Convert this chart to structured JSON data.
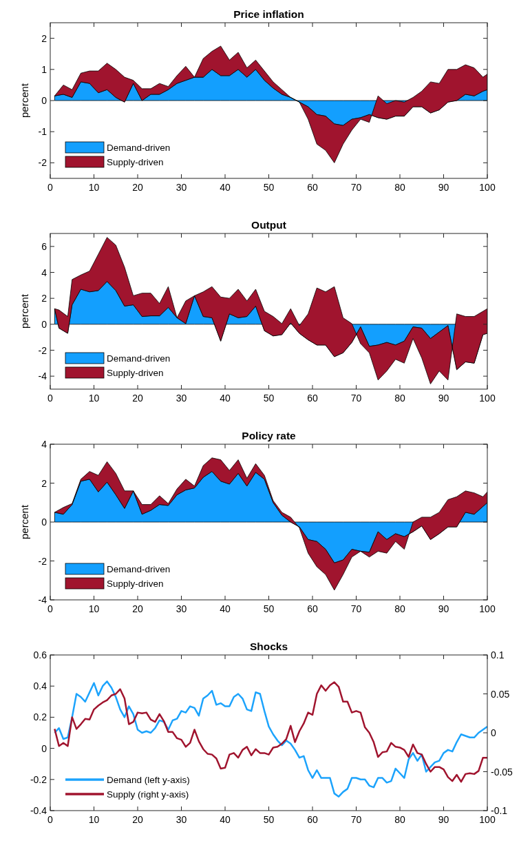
{
  "chart_data": [
    {
      "type": "area",
      "title": "Price inflation",
      "ylabel": "percent",
      "stacked": true,
      "legend": "bottom left",
      "xlim": [
        0,
        100
      ],
      "xticks": [
        0,
        10,
        20,
        30,
        40,
        50,
        60,
        70,
        80,
        90,
        100
      ],
      "ylim": [
        -2.5,
        2.5
      ],
      "yticks": [
        -2,
        -1,
        0,
        1,
        2
      ],
      "x": [
        1,
        3,
        5,
        7,
        9,
        11,
        13,
        15,
        17,
        19,
        21,
        23,
        25,
        27,
        29,
        31,
        33,
        35,
        37,
        39,
        41,
        43,
        45,
        47,
        49,
        51,
        53,
        55,
        57,
        59,
        61,
        63,
        65,
        67,
        69,
        71,
        73,
        75,
        77,
        79,
        81,
        83,
        85,
        87,
        89,
        91,
        93,
        95,
        97,
        99,
        100
      ],
      "series": [
        {
          "name": "Demand-driven",
          "color": "#139ffe",
          "values": [
            0.15,
            0.2,
            0.1,
            0.6,
            0.55,
            0.25,
            0.35,
            0.1,
            -0.05,
            0.55,
            0,
            0.2,
            0.2,
            0.35,
            0.55,
            0.65,
            0.75,
            0.75,
            1.0,
            0.8,
            0.8,
            1.0,
            0.75,
            1.0,
            0.65,
            0.4,
            0.2,
            0.1,
            -0.05,
            -0.2,
            -0.45,
            -0.5,
            -0.75,
            -0.8,
            -0.6,
            -0.55,
            -0.45,
            -0.55,
            -0.6,
            -0.5,
            -0.5,
            -0.2,
            -0.2,
            -0.4,
            -0.3,
            -0.05,
            0,
            0.2,
            0.15,
            0.3,
            0.35
          ]
        },
        {
          "name": "Supply-driven",
          "color": "#a0142e",
          "values": [
            0,
            0.3,
            0.25,
            0.28,
            0.4,
            0.7,
            0.85,
            0.9,
            0.8,
            0.1,
            0.38,
            0.18,
            0.35,
            0.1,
            0.25,
            0.45,
            0,
            0.6,
            0.58,
            0.95,
            0.5,
            0.55,
            0.3,
            0.3,
            0.3,
            0.2,
            0.15,
            0,
            0,
            -0.4,
            -0.95,
            -1.1,
            -1.25,
            -0.6,
            -0.35,
            -0.05,
            -0.25,
            0.7,
            0.5,
            0.5,
            0.45,
            0.3,
            0.5,
            1.0,
            0.85,
            1.05,
            1.0,
            0.95,
            0.9,
            0.45,
            0.5
          ]
        }
      ]
    },
    {
      "type": "area",
      "title": "Output",
      "ylabel": "percent",
      "stacked": true,
      "legend": "bottom left",
      "xlim": [
        0,
        100
      ],
      "xticks": [
        0,
        10,
        20,
        30,
        40,
        50,
        60,
        70,
        80,
        90,
        100
      ],
      "ylim": [
        -5,
        7
      ],
      "yticks": [
        -4,
        -2,
        0,
        2,
        4,
        6
      ],
      "x": [
        1,
        2,
        4,
        5,
        7,
        9,
        11,
        13,
        15,
        17,
        19,
        21,
        23,
        25,
        27,
        29,
        31,
        33,
        35,
        37,
        39,
        41,
        43,
        45,
        47,
        49,
        51,
        53,
        55,
        57,
        59,
        61,
        63,
        65,
        67,
        69,
        71,
        73,
        75,
        77,
        79,
        81,
        83,
        85,
        87,
        89,
        91,
        93,
        95,
        97,
        99,
        100
      ],
      "series": [
        {
          "name": "Demand-driven",
          "color": "#139ffe",
          "values": [
            1.2,
            -0.3,
            -0.7,
            1.5,
            2.7,
            2.5,
            2.6,
            3.3,
            2.6,
            1.4,
            1.5,
            0.6,
            0.65,
            0.65,
            1.3,
            0.5,
            0.05,
            2.2,
            0.6,
            0.5,
            -1.3,
            0.8,
            0.5,
            0.6,
            1.4,
            -0.5,
            -0.9,
            -0.8,
            0.1,
            -0.7,
            -1.2,
            -1.6,
            -1.6,
            -2.5,
            -2.2,
            -1.4,
            -0.2,
            -1.7,
            -1.6,
            -1.4,
            -1.6,
            -1.3,
            -0.2,
            -0.3,
            -1.1,
            -0.6,
            -0.1,
            -3.5,
            -2.9,
            -3.0,
            -0.8,
            -0.7
          ]
        },
        {
          "name": "Supply-driven",
          "color": "#a0142e",
          "values": [
            0,
            1.4,
            1.3,
            1.95,
            1.1,
            1.6,
            2.8,
            3.4,
            3.5,
            3.0,
            0.7,
            1.8,
            1.75,
            0.95,
            1.6,
            0,
            1.75,
            0,
            1.9,
            2.4,
            3.4,
            1.2,
            2.2,
            1.2,
            1.3,
            1.5,
            1.5,
            0.85,
            1.1,
            0.6,
            2.0,
            4.4,
            4.1,
            5.4,
            2.7,
            1.45,
            -1.3,
            -0.5,
            -2.7,
            -2.2,
            -1.1,
            -1.7,
            -0.9,
            -2.3,
            -3.5,
            -3.0,
            -4.2,
            4.3,
            3.5,
            3.6,
            1.8,
            1.9
          ]
        }
      ]
    },
    {
      "type": "area",
      "title": "Policy rate",
      "ylabel": "percent",
      "stacked": true,
      "legend": "bottom left",
      "xlim": [
        0,
        100
      ],
      "xticks": [
        0,
        10,
        20,
        30,
        40,
        50,
        60,
        70,
        80,
        90,
        100
      ],
      "ylim": [
        -4,
        4
      ],
      "yticks": [
        -4,
        -2,
        0,
        2,
        4
      ],
      "x": [
        1,
        3,
        5,
        7,
        9,
        11,
        13,
        15,
        17,
        19,
        21,
        23,
        25,
        27,
        29,
        31,
        33,
        35,
        37,
        39,
        41,
        43,
        45,
        47,
        49,
        51,
        53,
        55,
        57,
        59,
        61,
        63,
        65,
        67,
        69,
        71,
        73,
        75,
        77,
        79,
        81,
        83,
        85,
        87,
        89,
        91,
        93,
        95,
        97,
        99,
        100
      ],
      "series": [
        {
          "name": "Demand-driven",
          "color": "#139ffe",
          "values": [
            0.5,
            0.4,
            0.9,
            2.1,
            2.2,
            1.55,
            2.05,
            1.4,
            0.7,
            1.6,
            0.4,
            0.6,
            0.9,
            0.85,
            1.4,
            1.65,
            1.75,
            2.3,
            2.6,
            2.1,
            1.95,
            2.5,
            1.85,
            2.55,
            2.2,
            1.0,
            0.35,
            0,
            -0.25,
            -0.9,
            -1.0,
            -1.4,
            -2.1,
            -1.95,
            -1.4,
            -1.5,
            -1.55,
            -0.5,
            -0.9,
            -0.6,
            -0.75,
            -0.5,
            -0.2,
            -0.9,
            -0.6,
            -0.25,
            -0.25,
            0.5,
            0.4,
            0.8,
            1.0
          ]
        },
        {
          "name": "Supply-driven",
          "color": "#a0142e",
          "values": [
            0,
            0.35,
            0.05,
            0.1,
            0.4,
            0.85,
            1.05,
            1.1,
            0.9,
            0,
            0.5,
            0.3,
            0.45,
            0.1,
            0.3,
            0.55,
            0.1,
            0.6,
            0.7,
            1.1,
            0.7,
            0.7,
            0.4,
            0.45,
            0.2,
            0.1,
            0.15,
            0.25,
            -0.05,
            -0.7,
            -1.3,
            -1.3,
            -1.4,
            -0.75,
            -0.4,
            0,
            -0.25,
            -1.0,
            -0.7,
            -0.4,
            -0.65,
            0.5,
            0.45,
            1.15,
            1.1,
            1.4,
            1.55,
            1.1,
            1.1,
            0.5,
            0.55
          ]
        }
      ]
    },
    {
      "type": "line",
      "title": "Shocks",
      "legend": "bottom left",
      "xlim": [
        0,
        100
      ],
      "xticks": [
        0,
        10,
        20,
        30,
        40,
        50,
        60,
        70,
        80,
        90,
        100
      ],
      "ylim": [
        -0.4,
        0.6
      ],
      "yticks": [
        -0.4,
        -0.2,
        0,
        0.2,
        0.4,
        0.6
      ],
      "y2lim": [
        -0.1,
        0.1
      ],
      "y2ticks": [
        -0.1,
        -0.05,
        0,
        0.05,
        0.1
      ],
      "x": [
        1,
        2,
        3,
        4,
        5,
        6,
        7,
        8,
        9,
        10,
        11,
        12,
        13,
        14,
        15,
        16,
        17,
        18,
        19,
        20,
        21,
        22,
        23,
        24,
        25,
        26,
        27,
        28,
        29,
        30,
        31,
        32,
        33,
        34,
        35,
        36,
        37,
        38,
        39,
        40,
        41,
        42,
        43,
        44,
        45,
        46,
        47,
        48,
        49,
        50,
        51,
        52,
        53,
        54,
        55,
        56,
        57,
        58,
        59,
        60,
        61,
        62,
        63,
        64,
        65,
        66,
        67,
        68,
        69,
        70,
        71,
        72,
        73,
        74,
        75,
        76,
        77,
        78,
        79,
        80,
        81,
        82,
        83,
        84,
        85,
        86,
        87,
        88,
        89,
        90,
        91,
        92,
        93,
        94,
        95,
        96,
        97,
        98,
        99,
        100
      ],
      "series": [
        {
          "name": "Demand (left y-axis)",
          "color": "#1ca3fc",
          "values": [
            0.1,
            0.13,
            0.06,
            0.07,
            0.2,
            0.35,
            0.33,
            0.3,
            0.36,
            0.42,
            0.34,
            0.4,
            0.43,
            0.39,
            0.33,
            0.25,
            0.2,
            0.27,
            0.22,
            0.12,
            0.1,
            0.11,
            0.1,
            0.13,
            0.18,
            0.17,
            0.12,
            0.18,
            0.19,
            0.24,
            0.23,
            0.27,
            0.26,
            0.21,
            0.32,
            0.34,
            0.37,
            0.28,
            0.29,
            0.27,
            0.27,
            0.33,
            0.35,
            0.32,
            0.25,
            0.24,
            0.36,
            0.35,
            0.24,
            0.14,
            0.09,
            0.05,
            0.02,
            0.05,
            0.03,
            -0.01,
            -0.06,
            -0.05,
            -0.14,
            -0.19,
            -0.14,
            -0.19,
            -0.19,
            -0.19,
            -0.29,
            -0.31,
            -0.28,
            -0.26,
            -0.19,
            -0.19,
            -0.2,
            -0.2,
            -0.24,
            -0.25,
            -0.19,
            -0.19,
            -0.22,
            -0.21,
            -0.13,
            -0.16,
            -0.19,
            -0.07,
            -0.03,
            -0.08,
            -0.04,
            -0.15,
            -0.12,
            -0.09,
            -0.08,
            -0.03,
            -0.01,
            -0.02,
            0.04,
            0.09,
            0.08,
            0.07,
            0.07,
            0.1,
            0.12,
            0.14
          ]
        },
        {
          "name": "Supply (right y-axis)",
          "color": "#a0142e",
          "axis": "y2",
          "values": [
            0.005,
            -0.017,
            -0.013,
            -0.017,
            0.02,
            0.005,
            0.011,
            0.018,
            0.017,
            0.03,
            0.035,
            0.039,
            0.042,
            0.048,
            0.05,
            0.056,
            0.044,
            0.011,
            0.014,
            0.026,
            0.025,
            0.026,
            0.017,
            0.014,
            0.024,
            0.015,
            0.001,
            0.001,
            -0.007,
            -0.009,
            -0.018,
            -0.013,
            0.004,
            -0.011,
            -0.021,
            -0.027,
            -0.028,
            -0.033,
            -0.046,
            -0.045,
            -0.028,
            -0.026,
            -0.032,
            -0.022,
            -0.018,
            -0.029,
            -0.021,
            -0.026,
            -0.026,
            -0.028,
            -0.019,
            -0.018,
            -0.014,
            -0.008,
            0.009,
            -0.012,
            0.002,
            0.012,
            0.026,
            0.023,
            0.05,
            0.061,
            0.054,
            0.061,
            0.065,
            0.059,
            0.04,
            0.04,
            0.026,
            0.028,
            0.026,
            0.007,
            0,
            -0.012,
            -0.031,
            -0.025,
            -0.024,
            -0.013,
            -0.018,
            -0.019,
            -0.022,
            -0.031,
            -0.015,
            -0.026,
            -0.028,
            -0.04,
            -0.05,
            -0.044,
            -0.044,
            -0.047,
            -0.057,
            -0.062,
            -0.054,
            -0.063,
            -0.053,
            -0.052,
            -0.053,
            -0.049,
            -0.032,
            -0.032
          ]
        }
      ]
    }
  ]
}
